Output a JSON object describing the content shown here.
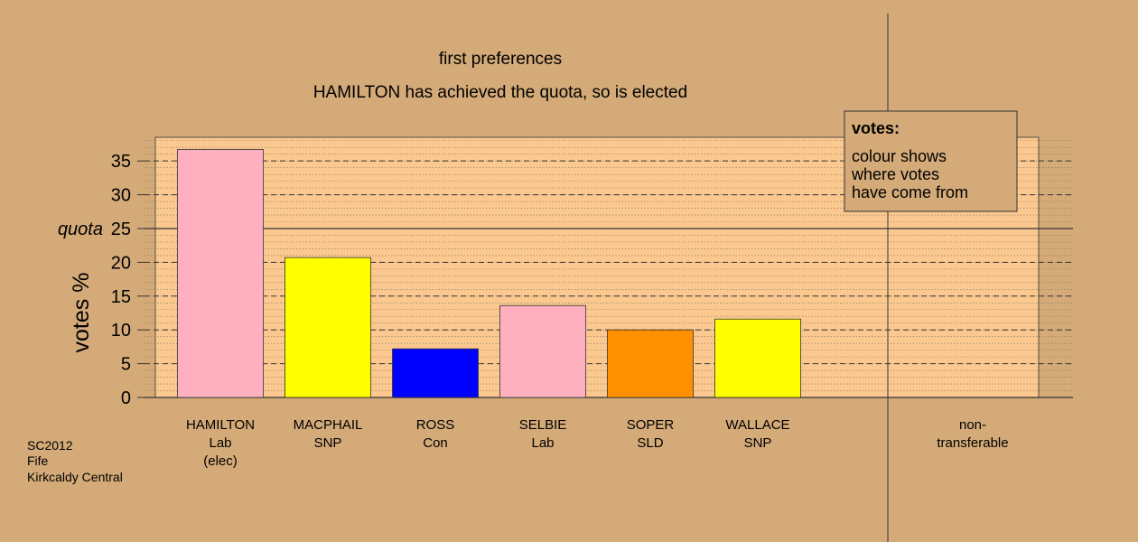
{
  "chart_data": {
    "type": "bar",
    "title": "first preferences",
    "subtitle": "HAMILTON has achieved the quota, so is elected",
    "y_label": "votes %",
    "categories": [
      [
        "HAMILTON",
        "Lab",
        "(elec)"
      ],
      [
        "MACPHAIL",
        "SNP"
      ],
      [
        "ROSS",
        "Con"
      ],
      [
        "SELBIE",
        "Lab"
      ],
      [
        "SOPER",
        "SLD"
      ],
      [
        "WALLACE",
        "SNP"
      ],
      null,
      [
        "non-",
        "transferable"
      ]
    ],
    "values": [
      36.7,
      20.7,
      7.2,
      13.6,
      10.0,
      11.6,
      null,
      null
    ],
    "colors": [
      "#ffb0c0",
      "#ffff00",
      "#0000ff",
      "#ffb0c0",
      "#ff9000",
      "#ffff00",
      null,
      null
    ],
    "ylim": [
      0,
      38.5
    ],
    "yticks": [
      0,
      5,
      10,
      15,
      20,
      25,
      30,
      35
    ],
    "quota": {
      "value": 25,
      "label": "quota"
    },
    "legend": {
      "title": "votes:",
      "lines": [
        "colour shows",
        "where votes",
        "have come from"
      ]
    },
    "footer": [
      "SC2012",
      "Fife",
      "Kirkcaldy Central"
    ]
  }
}
